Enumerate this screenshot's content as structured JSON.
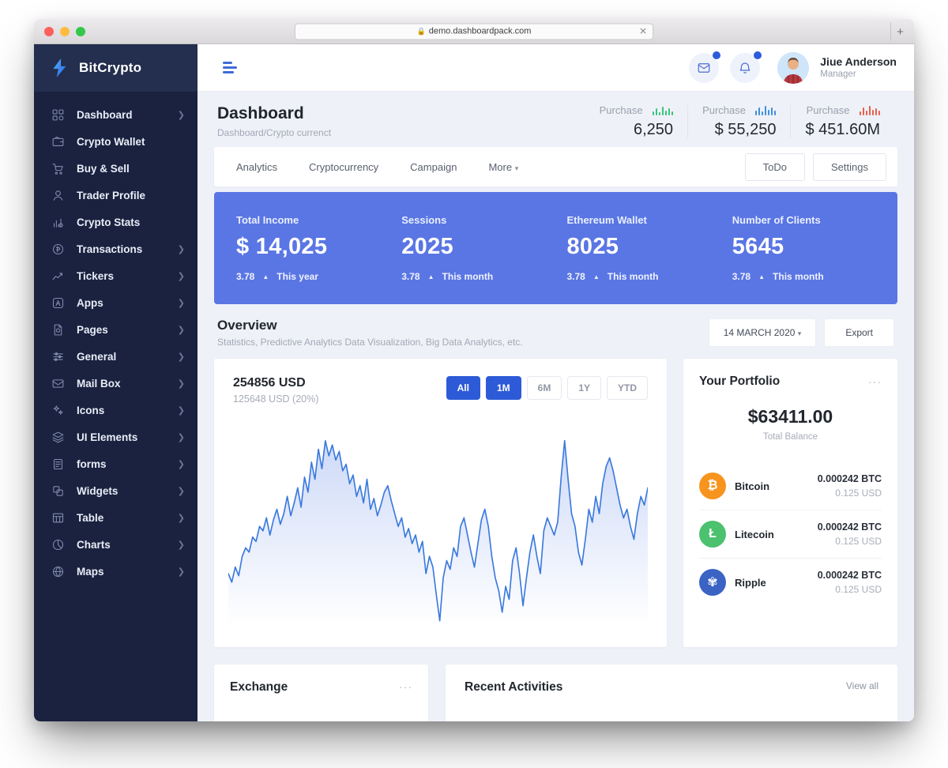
{
  "browser": {
    "url": "demo.dashboardpack.com",
    "close_label": "✕",
    "new_tab_label": "+"
  },
  "sidebar": {
    "logo_text": "BitCrypto",
    "items": [
      {
        "label": "Dashboard",
        "icon": "grid-icon",
        "chevron": true
      },
      {
        "label": "Crypto Wallet",
        "icon": "wallet-icon",
        "chevron": false
      },
      {
        "label": "Buy & Sell",
        "icon": "cart-icon",
        "chevron": false
      },
      {
        "label": "Trader Profile",
        "icon": "user-icon",
        "chevron": false
      },
      {
        "label": "Crypto Stats",
        "icon": "stats-icon",
        "chevron": false
      },
      {
        "label": "Transactions",
        "icon": "refresh-coin-icon",
        "chevron": true
      },
      {
        "label": "Tickers",
        "icon": "trend-icon",
        "chevron": true
      },
      {
        "label": "Apps",
        "icon": "appstore-icon",
        "chevron": true
      },
      {
        "label": "Pages",
        "icon": "page-icon",
        "chevron": true
      },
      {
        "label": "General",
        "icon": "sliders-icon",
        "chevron": true
      },
      {
        "label": "Mail Box",
        "icon": "envelope-icon",
        "chevron": true
      },
      {
        "label": "Icons",
        "icon": "sparkles-icon",
        "chevron": true
      },
      {
        "label": "UI Elements",
        "icon": "layers-icon",
        "chevron": true
      },
      {
        "label": "forms",
        "icon": "form-icon",
        "chevron": true
      },
      {
        "label": "Widgets",
        "icon": "widget-icon",
        "chevron": true
      },
      {
        "label": "Table",
        "icon": "table-icon",
        "chevron": true
      },
      {
        "label": "Charts",
        "icon": "chart-pie-icon",
        "chevron": true
      },
      {
        "label": "Maps",
        "icon": "globe-icon",
        "chevron": true
      }
    ]
  },
  "header": {
    "user_name": "Jiue Anderson",
    "user_role": "Manager",
    "badge_color": "#2b5cd9"
  },
  "page_header": {
    "title": "Dashboard",
    "breadcrumb": "Dashboard/Crypto currenct",
    "purchases": [
      {
        "label": "Purchase",
        "value": "6,250",
        "color": "#3ac47d",
        "bars": [
          5,
          9,
          4,
          11,
          6,
          9,
          5
        ]
      },
      {
        "label": "Purchase",
        "value": "$ 55,250",
        "color": "#3d8fdd",
        "bars": [
          6,
          10,
          5,
          12,
          7,
          10,
          6
        ]
      },
      {
        "label": "Purchase",
        "value": "$ 451.60M",
        "color": "#e8604c",
        "bars": [
          5,
          10,
          6,
          12,
          7,
          9,
          6
        ]
      }
    ]
  },
  "tabs": {
    "items": [
      "Analytics",
      "Cryptocurrency",
      "Campaign"
    ],
    "more_label": "More",
    "more_caret": "▾",
    "buttons": [
      "ToDo",
      "Settings"
    ]
  },
  "stats_band": {
    "bg_color": "#5a76e4",
    "items": [
      {
        "label": "Total Income",
        "value": "$ 14,025",
        "delta": "3.78",
        "period": "This year"
      },
      {
        "label": "Sessions",
        "value": "2025",
        "delta": "3.78",
        "period": "This month"
      },
      {
        "label": "Ethereum Wallet",
        "value": "8025",
        "delta": "3.78",
        "period": "This month"
      },
      {
        "label": "Number of Clients",
        "value": "5645",
        "delta": "3.78",
        "period": "This month"
      }
    ]
  },
  "overview": {
    "title": "Overview",
    "subtitle": "Statistics, Predictive Analytics Data Visualization, Big Data Analytics, etc.",
    "date_button": "14 MARCH 2020",
    "date_caret": "▾",
    "export_button": "Export"
  },
  "chart_card": {
    "value": "254856 USD",
    "subvalue": "125648 USD (20%)",
    "active_color": "#2d5bd8",
    "ranges": [
      {
        "label": "All",
        "active": true
      },
      {
        "label": "1M",
        "active": true
      },
      {
        "label": "6M",
        "active": false
      },
      {
        "label": "1Y",
        "active": false
      },
      {
        "label": "YTD",
        "active": false
      }
    ]
  },
  "chart_data": {
    "type": "area",
    "title": "254856 USD price history",
    "xlabel": "",
    "ylabel": "",
    "axes_hidden": true,
    "grid": false,
    "legend": false,
    "line_color": "#3a79de",
    "fill_color_top": "rgba(90,130,230,0.28)",
    "fill_color_bottom": "rgba(90,130,230,0)",
    "ylim": [
      0,
      100
    ],
    "values": [
      30,
      26,
      33,
      29,
      38,
      42,
      40,
      47,
      45,
      52,
      50,
      56,
      48,
      55,
      60,
      53,
      58,
      66,
      57,
      63,
      70,
      61,
      75,
      68,
      82,
      74,
      88,
      79,
      92,
      85,
      90,
      83,
      87,
      78,
      81,
      72,
      76,
      66,
      71,
      63,
      74,
      60,
      65,
      57,
      62,
      68,
      71,
      64,
      58,
      52,
      56,
      47,
      51,
      44,
      48,
      40,
      45,
      30,
      38,
      33,
      20,
      8,
      28,
      36,
      32,
      42,
      38,
      52,
      56,
      48,
      40,
      33,
      44,
      55,
      60,
      52,
      38,
      28,
      22,
      12,
      24,
      18,
      36,
      42,
      30,
      15,
      28,
      40,
      48,
      38,
      30,
      50,
      56,
      52,
      48,
      54,
      75,
      92,
      74,
      58,
      52,
      40,
      34,
      46,
      60,
      54,
      66,
      58,
      72,
      80,
      84,
      78,
      70,
      62,
      56,
      60,
      52,
      46,
      58,
      66,
      62,
      70
    ]
  },
  "portfolio": {
    "title": "Your Portfolio",
    "menu": "···",
    "balance": "$63411.00",
    "balance_label": "Total Balance",
    "assets": [
      {
        "name": "Bitcoin",
        "icon": "bitcoin-icon",
        "glyph": "₿",
        "color": "#f7941e",
        "amount": "0.000242 BTC",
        "usd": "0.125 USD"
      },
      {
        "name": "Litecoin",
        "icon": "litecoin-icon",
        "glyph": "Ł",
        "color": "#4cc16e",
        "amount": "0.000242 BTC",
        "usd": "0.125 USD"
      },
      {
        "name": "Ripple",
        "icon": "ripple-icon",
        "glyph": "✾",
        "color": "#3a63c4",
        "amount": "0.000242 BTC",
        "usd": "0.125 USD"
      }
    ]
  },
  "bottom": {
    "exchange_title": "Exchange",
    "exchange_menu": "···",
    "recent_title": "Recent Activities",
    "view_all": "View all"
  }
}
